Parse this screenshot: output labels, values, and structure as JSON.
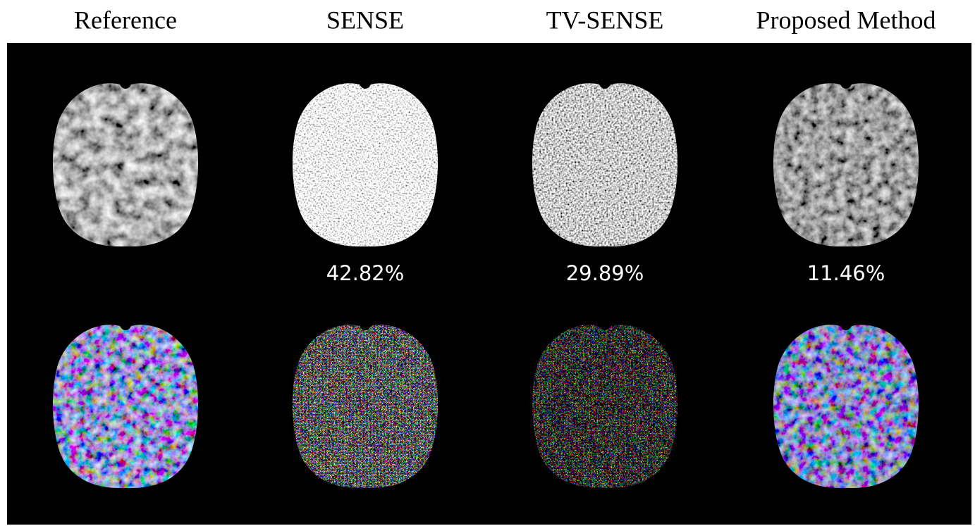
{
  "columns": [
    {
      "title": "Reference"
    },
    {
      "title": "SENSE",
      "error": "42.82%"
    },
    {
      "title": "TV-SENSE",
      "error": "29.89%"
    },
    {
      "title": "Proposed Method",
      "error": "11.46%"
    }
  ]
}
